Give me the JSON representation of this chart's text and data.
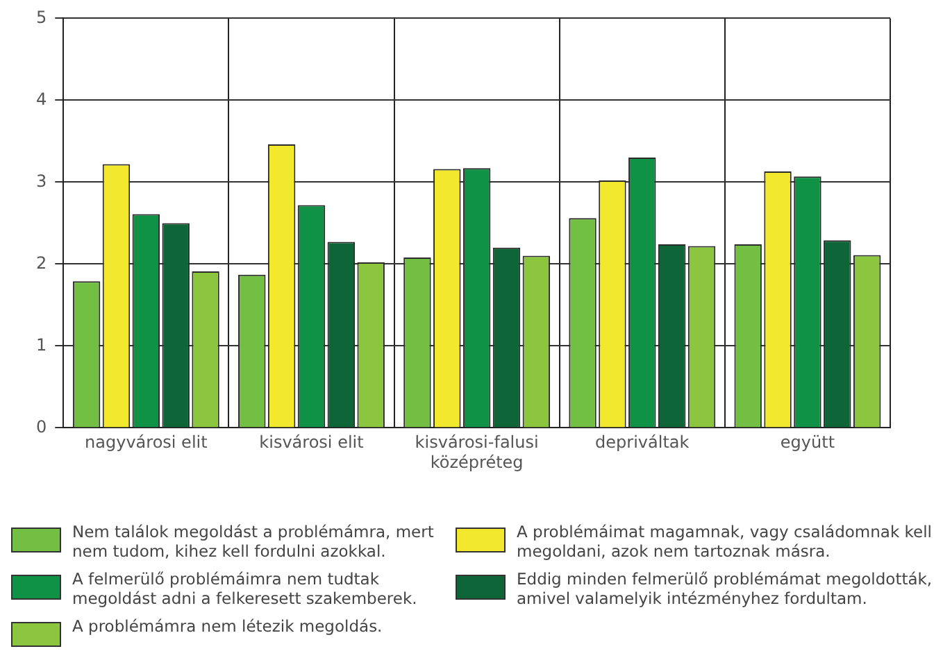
{
  "chart_data": {
    "type": "bar",
    "categories": [
      "nagyvárosi elit",
      "kisvárosi elit",
      "kisvárosi-falusi középréteg",
      "depriváltak",
      "együtt"
    ],
    "series": [
      {
        "name": "Nem találok megoldást a problémámra, mert nem tudom, kihez kell fordulni azokkal.",
        "color": "#72bf44",
        "values": [
          1.79,
          1.87,
          2.08,
          2.56,
          2.24
        ]
      },
      {
        "name": "A problémáimat magamnak, vagy családomnak kell megoldani, azok nem tartoznak másra.",
        "color": "#f2e92e",
        "values": [
          3.22,
          3.46,
          3.16,
          3.02,
          3.13
        ]
      },
      {
        "name": "A felmerülő problémáimra nem tudtak megoldást adni a felkeresett szakemberek.",
        "color": "#0f9146",
        "values": [
          2.61,
          2.72,
          3.17,
          3.3,
          3.07
        ]
      },
      {
        "name": "Eddig minden felmerülő problémámat megoldották, amivel valamelyik intézményhez fordultam.",
        "color": "#0e6638",
        "values": [
          2.5,
          2.27,
          2.2,
          2.24,
          2.29
        ]
      },
      {
        "name": "A problémámra nem létezik megoldás.",
        "color": "#8cc63f",
        "values": [
          1.91,
          2.02,
          2.1,
          2.22,
          2.11
        ]
      }
    ],
    "ylim": [
      0,
      5
    ],
    "yticks": [
      0,
      1,
      2,
      3,
      4,
      5
    ],
    "grid": true,
    "legend": "bottom"
  }
}
